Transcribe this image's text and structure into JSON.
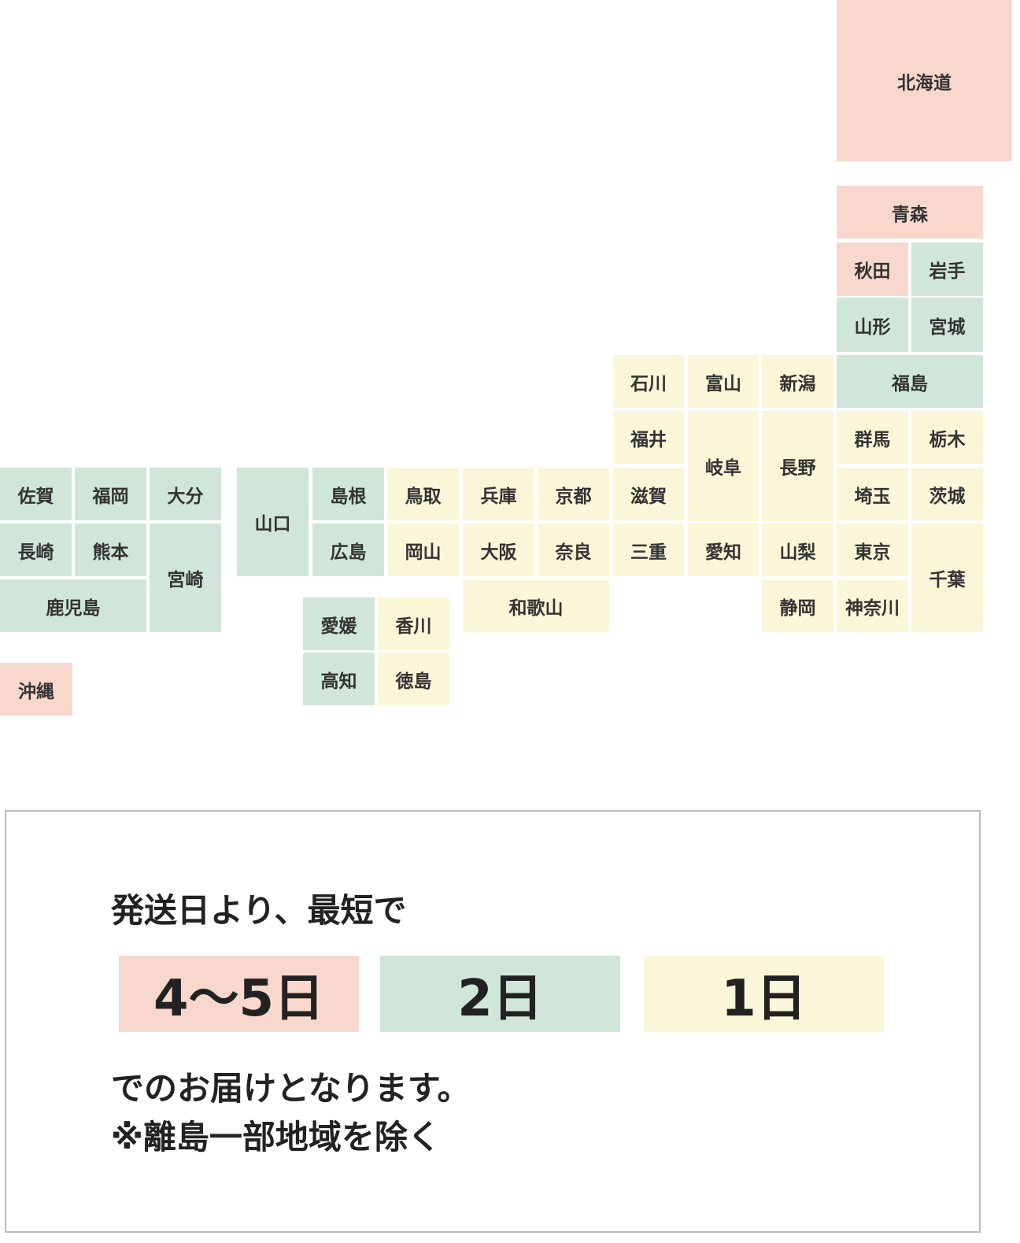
{
  "map": {
    "zones": [
      {
        "label": "4〜5日",
        "color": "#f8d8cc",
        "prefectures": [
          "北海道",
          "青森",
          "秋田",
          "沖縄"
        ]
      },
      {
        "label": "2日",
        "color": "#cfe6d8",
        "prefectures": [
          "岩手",
          "山形",
          "宮城",
          "福島",
          "佐賀",
          "福岡",
          "大分",
          "長崎",
          "熊本",
          "宮崎",
          "鹿児島",
          "山口",
          "島根",
          "広島",
          "愛媛",
          "高知"
        ]
      },
      {
        "label": "1日",
        "color": "#faf6d8",
        "prefectures": [
          "石川",
          "富山",
          "新潟",
          "福井",
          "岐阜",
          "長野",
          "群馬",
          "栃木",
          "滋賀",
          "埼玉",
          "茨城",
          "鳥取",
          "兵庫",
          "京都",
          "岡山",
          "大阪",
          "奈良",
          "三重",
          "愛知",
          "山梨",
          "東京",
          "千葉",
          "和歌山",
          "静岡",
          "神奈川",
          "香川",
          "徳島"
        ]
      }
    ]
  },
  "note": {
    "lead": "発送日より、最短で",
    "lines": [
      "でのお届けとなります。",
      "※離島一部地域を除く"
    ]
  }
}
